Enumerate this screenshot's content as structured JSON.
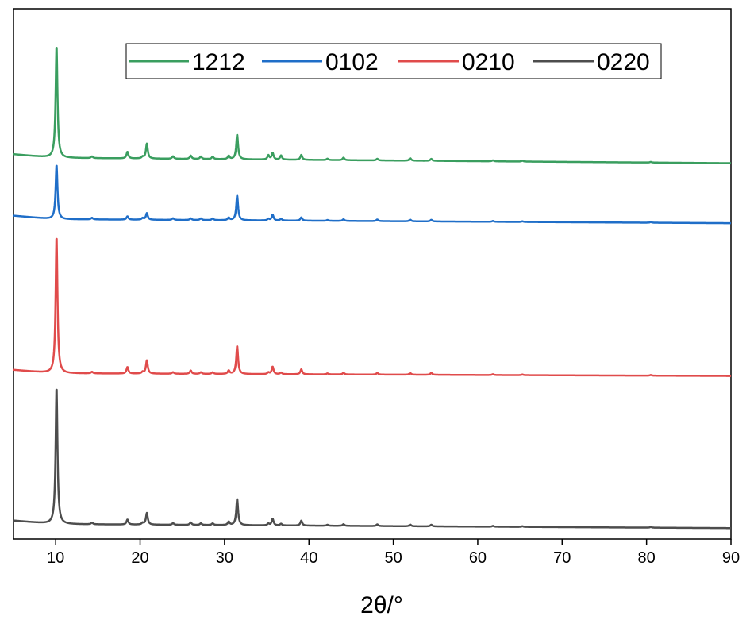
{
  "chart_data": {
    "type": "line",
    "title": "",
    "xlabel": "2θ/°",
    "ylabel": "",
    "xlim": [
      5,
      90
    ],
    "xticks": [
      "10",
      "20",
      "30",
      "40",
      "50",
      "60",
      "70",
      "80",
      "90"
    ],
    "grid": false,
    "legend_position": "top",
    "y_ticks_shown": false,
    "peak_positions": [
      10.1,
      14.3,
      18.5,
      20.3,
      20.8,
      23.9,
      26.0,
      27.2,
      28.6,
      30.5,
      31.5,
      35.2,
      35.7,
      36.7,
      39.1,
      42.2,
      44.1,
      48.1,
      52.0,
      54.5,
      61.8,
      65.3,
      80.5
    ],
    "series": [
      {
        "name": "1212",
        "color": "#3a9e5f",
        "offset": 2.1,
        "baseline_slope": -0.0004,
        "peaks": [
          0.68,
          0.01,
          0.04,
          0.01,
          0.09,
          0.015,
          0.02,
          0.015,
          0.015,
          0.02,
          0.15,
          0.025,
          0.04,
          0.025,
          0.03,
          0.008,
          0.015,
          0.01,
          0.015,
          0.012,
          0.006,
          0.005,
          0.004
        ]
      },
      {
        "name": "0102",
        "color": "#1f6ec8",
        "offset": 1.73,
        "baseline_slope": -0.0003,
        "peaks": [
          0.33,
          0.01,
          0.02,
          0.01,
          0.04,
          0.01,
          0.01,
          0.01,
          0.01,
          0.015,
          0.15,
          0.01,
          0.035,
          0.01,
          0.02,
          0.005,
          0.01,
          0.01,
          0.01,
          0.01,
          0.005,
          0.004,
          0.004
        ]
      },
      {
        "name": "0210",
        "color": "#e04b4b",
        "offset": 0.8,
        "baseline_slope": -0.0002,
        "peaks": [
          0.83,
          0.01,
          0.04,
          0.01,
          0.08,
          0.01,
          0.02,
          0.01,
          0.01,
          0.02,
          0.17,
          0.01,
          0.045,
          0.01,
          0.03,
          0.006,
          0.01,
          0.01,
          0.01,
          0.012,
          0.005,
          0.004,
          0.004
        ]
      },
      {
        "name": "0220",
        "color": "#4d4d4d",
        "offset": -0.11,
        "baseline_slope": -0.0003,
        "peaks": [
          0.83,
          0.01,
          0.03,
          0.01,
          0.07,
          0.01,
          0.015,
          0.01,
          0.01,
          0.02,
          0.16,
          0.01,
          0.04,
          0.01,
          0.03,
          0.006,
          0.01,
          0.01,
          0.01,
          0.01,
          0.005,
          0.004,
          0.004
        ]
      }
    ]
  }
}
